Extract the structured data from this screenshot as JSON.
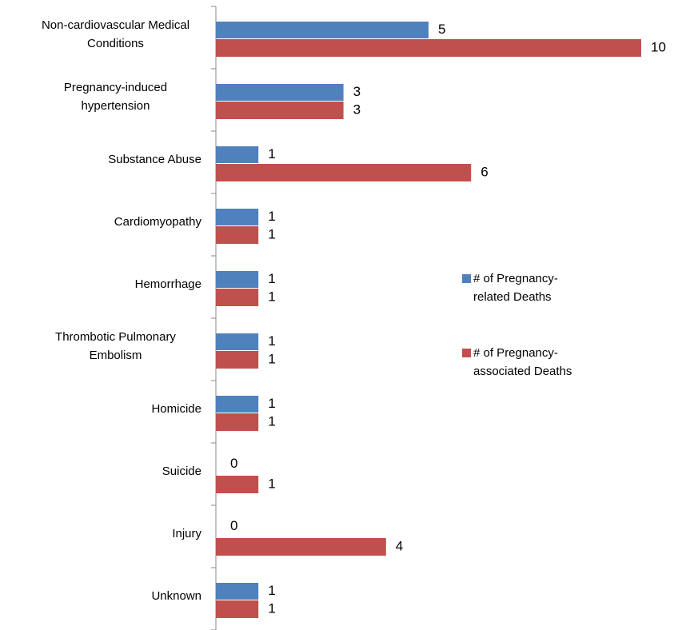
{
  "chart_data": {
    "type": "bar",
    "orientation": "horizontal",
    "categories": [
      "Non-cardiovascular Medical Conditions",
      "Pregnancy-induced hypertension",
      "Substance Abuse",
      "Cardiomyopathy",
      "Hemorrhage",
      "Thrombotic Pulmonary Embolism",
      "Homicide",
      "Suicide",
      "Injury",
      "Unknown"
    ],
    "series": [
      {
        "name": "# of Pregnancy-related Deaths",
        "color": "#4f81bd",
        "values": [
          5,
          3,
          1,
          1,
          1,
          1,
          1,
          0,
          0,
          1
        ]
      },
      {
        "name": "# of Pregnancy-associated Deaths",
        "color": "#c0504d",
        "values": [
          10,
          3,
          6,
          1,
          1,
          1,
          1,
          1,
          4,
          1
        ]
      }
    ],
    "legend": "right"
  }
}
